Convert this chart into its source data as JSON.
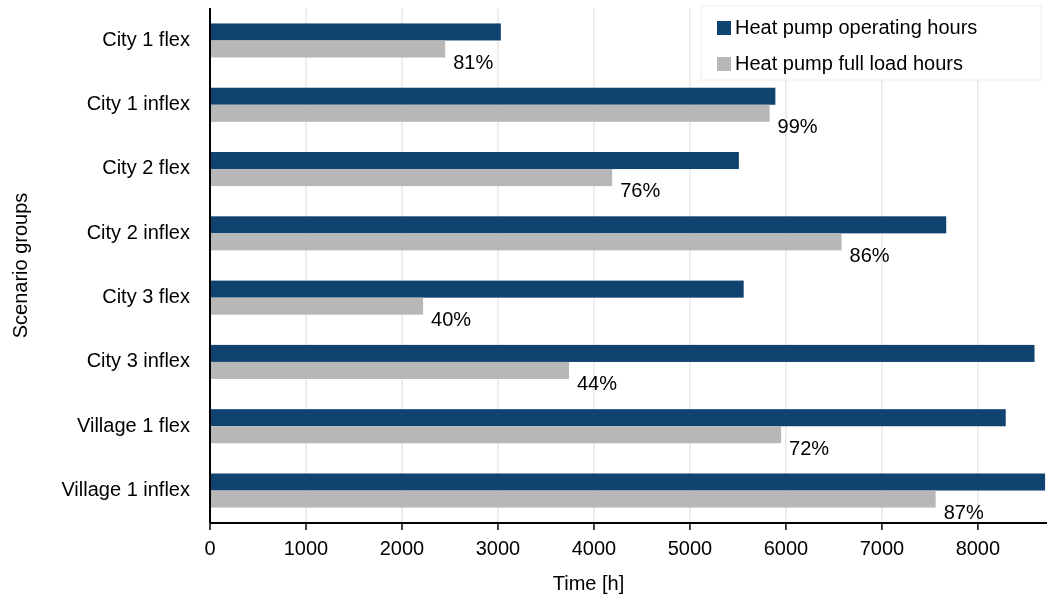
{
  "chart_data": {
    "type": "bar",
    "orientation": "horizontal",
    "xlabel": "Time [h]",
    "ylabel": "Scenario groups",
    "categories": [
      "City 1 flex",
      "City 1 inflex",
      "City 2 flex",
      "City 2 inflex",
      "City 3 flex",
      "City 3 inflex",
      "Village 1 flex",
      "Village 1 inflex"
    ],
    "series": [
      {
        "name": "Heat pump operating hours",
        "color": "#10436f",
        "values": [
          3030,
          5890,
          5510,
          7670,
          5560,
          8590,
          8290,
          8700
        ]
      },
      {
        "name": "Heat pump full load hours",
        "color": "#b7b7b7",
        "values": [
          2450,
          5830,
          4190,
          6580,
          2220,
          3740,
          5950,
          7560
        ]
      }
    ],
    "annotations": [
      {
        "text": "81%",
        "x": 2450,
        "y": "City 1 flex"
      },
      {
        "text": "99%",
        "x": 5830,
        "y": "City 1 inflex"
      },
      {
        "text": "76%",
        "x": 4190,
        "y": "City 2 flex"
      },
      {
        "text": "86%",
        "x": 6580,
        "y": "City 2 inflex"
      },
      {
        "text": "40%",
        "x": 2220,
        "y": "City 3 flex"
      },
      {
        "text": "44%",
        "x": 3740,
        "y": "City 3 inflex"
      },
      {
        "text": "72%",
        "x": 5950,
        "y": "Village 1 flex"
      },
      {
        "text": "87%",
        "x": 7560,
        "y": "Village 1 inflex"
      }
    ],
    "xlim": [
      0,
      8720
    ],
    "xticks": [
      0,
      1000,
      2000,
      3000,
      4000,
      5000,
      6000,
      7000,
      8000
    ],
    "grid": "x",
    "legend": "top right"
  }
}
